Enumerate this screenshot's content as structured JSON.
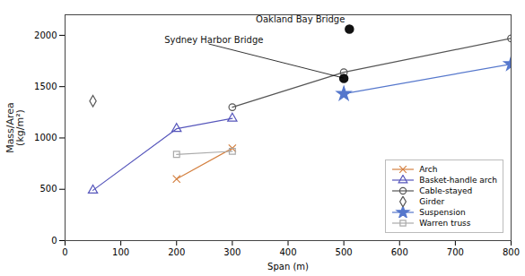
{
  "chart_data": {
    "type": "line",
    "xlabel": "Span (m)",
    "ylabel": "Mass/Area\n(kg/m²)",
    "xlim": [
      0,
      800
    ],
    "ylim": [
      0,
      2200
    ],
    "xticks": [
      0,
      100,
      200,
      300,
      400,
      500,
      600,
      700,
      800
    ],
    "yticks": [
      0,
      500,
      1000,
      1500,
      2000
    ],
    "legend": "lower right",
    "series": [
      {
        "name": "Arch",
        "x": [
          200,
          300
        ],
        "values": [
          600,
          900
        ],
        "color": "#d48040",
        "marker": "x",
        "line_style": "solid"
      },
      {
        "name": "Basket-handle arch",
        "x": [
          50,
          200,
          300
        ],
        "values": [
          490,
          1090,
          1190
        ],
        "color": "#5555bb",
        "marker": "triangle",
        "line_style": "solid"
      },
      {
        "name": "Cable-stayed",
        "x": [
          300,
          500,
          800
        ],
        "values": [
          1300,
          1640,
          1970
        ],
        "color": "#555555",
        "marker": "circle",
        "line_style": "solid"
      },
      {
        "name": "Girder",
        "x": [
          50
        ],
        "values": [
          1360
        ],
        "color": "#555555",
        "marker": "diamond",
        "line_style": "none"
      },
      {
        "name": "Suspension",
        "x": [
          500,
          800
        ],
        "values": [
          1430,
          1720
        ],
        "color": "#5577cc",
        "marker": "star",
        "line_style": "solid"
      },
      {
        "name": "Warren truss",
        "x": [
          200,
          300
        ],
        "values": [
          840,
          870
        ],
        "color": "#aaaaaa",
        "marker": "square",
        "line_style": "solid"
      }
    ],
    "annotations": [
      {
        "text": "Oakland Bay Bridge",
        "x": 510,
        "y": 2060,
        "color": "#111111",
        "marker": "circle"
      },
      {
        "text": "Sydney Harbor Bridge",
        "x": 500,
        "y": 1580,
        "color": "#111111",
        "marker": "circle",
        "line_style": "solid"
      }
    ]
  }
}
